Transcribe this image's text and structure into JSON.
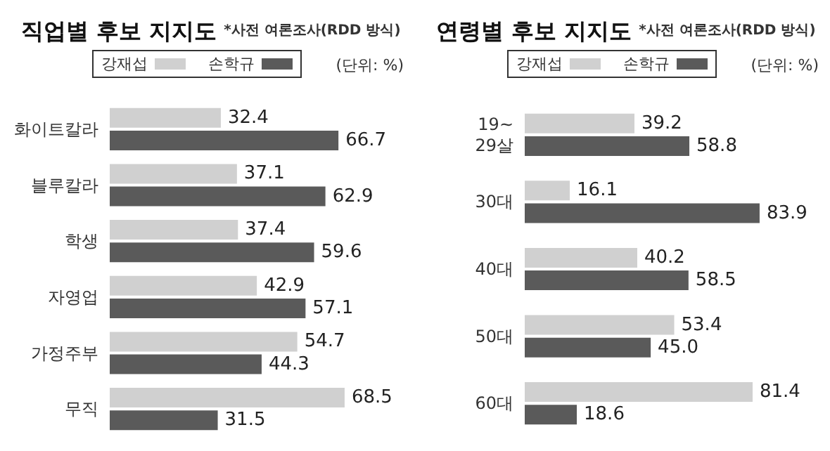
{
  "chart_data": [
    {
      "type": "bar",
      "orientation": "horizontal",
      "title": "직업별 후보 지지도",
      "subtitle": "*사전 여론조사(RDD 방식)",
      "annotations": [
        "(단위: %)"
      ],
      "categories": [
        "화이트칼라",
        "블루칼라",
        "학생",
        "자영업",
        "가정주부",
        "무직"
      ],
      "series": [
        {
          "name": "강재섭",
          "color": "#d0d0d0",
          "values": [
            32.4,
            37.1,
            37.4,
            42.9,
            54.7,
            68.5
          ]
        },
        {
          "name": "손학규",
          "color": "#5a5a5a",
          "values": [
            66.7,
            62.9,
            59.6,
            57.1,
            44.3,
            31.5
          ]
        }
      ],
      "data_labels": true,
      "legend": "top"
    },
    {
      "type": "bar",
      "orientation": "horizontal",
      "title": "연령별 후보 지지도",
      "subtitle": "*사전 여론조사(RDD 방식)",
      "annotations": [
        "(단위: %)"
      ],
      "categories": [
        "19~\n29살",
        "30대",
        "40대",
        "50대",
        "60대"
      ],
      "series": [
        {
          "name": "강재섭",
          "color": "#d0d0d0",
          "values": [
            39.2,
            16.1,
            40.2,
            53.4,
            81.4
          ],
          "value_labels": [
            "39.2",
            "16.1",
            "40.2",
            "53.4",
            "81.4"
          ]
        },
        {
          "name": "손학규",
          "color": "#5a5a5a",
          "values": [
            58.8,
            83.9,
            58.5,
            45.0,
            18.6
          ],
          "value_labels": [
            "58.8",
            "83.9",
            "58.5",
            "45.0",
            "18.6"
          ]
        }
      ],
      "legend": "top"
    }
  ]
}
